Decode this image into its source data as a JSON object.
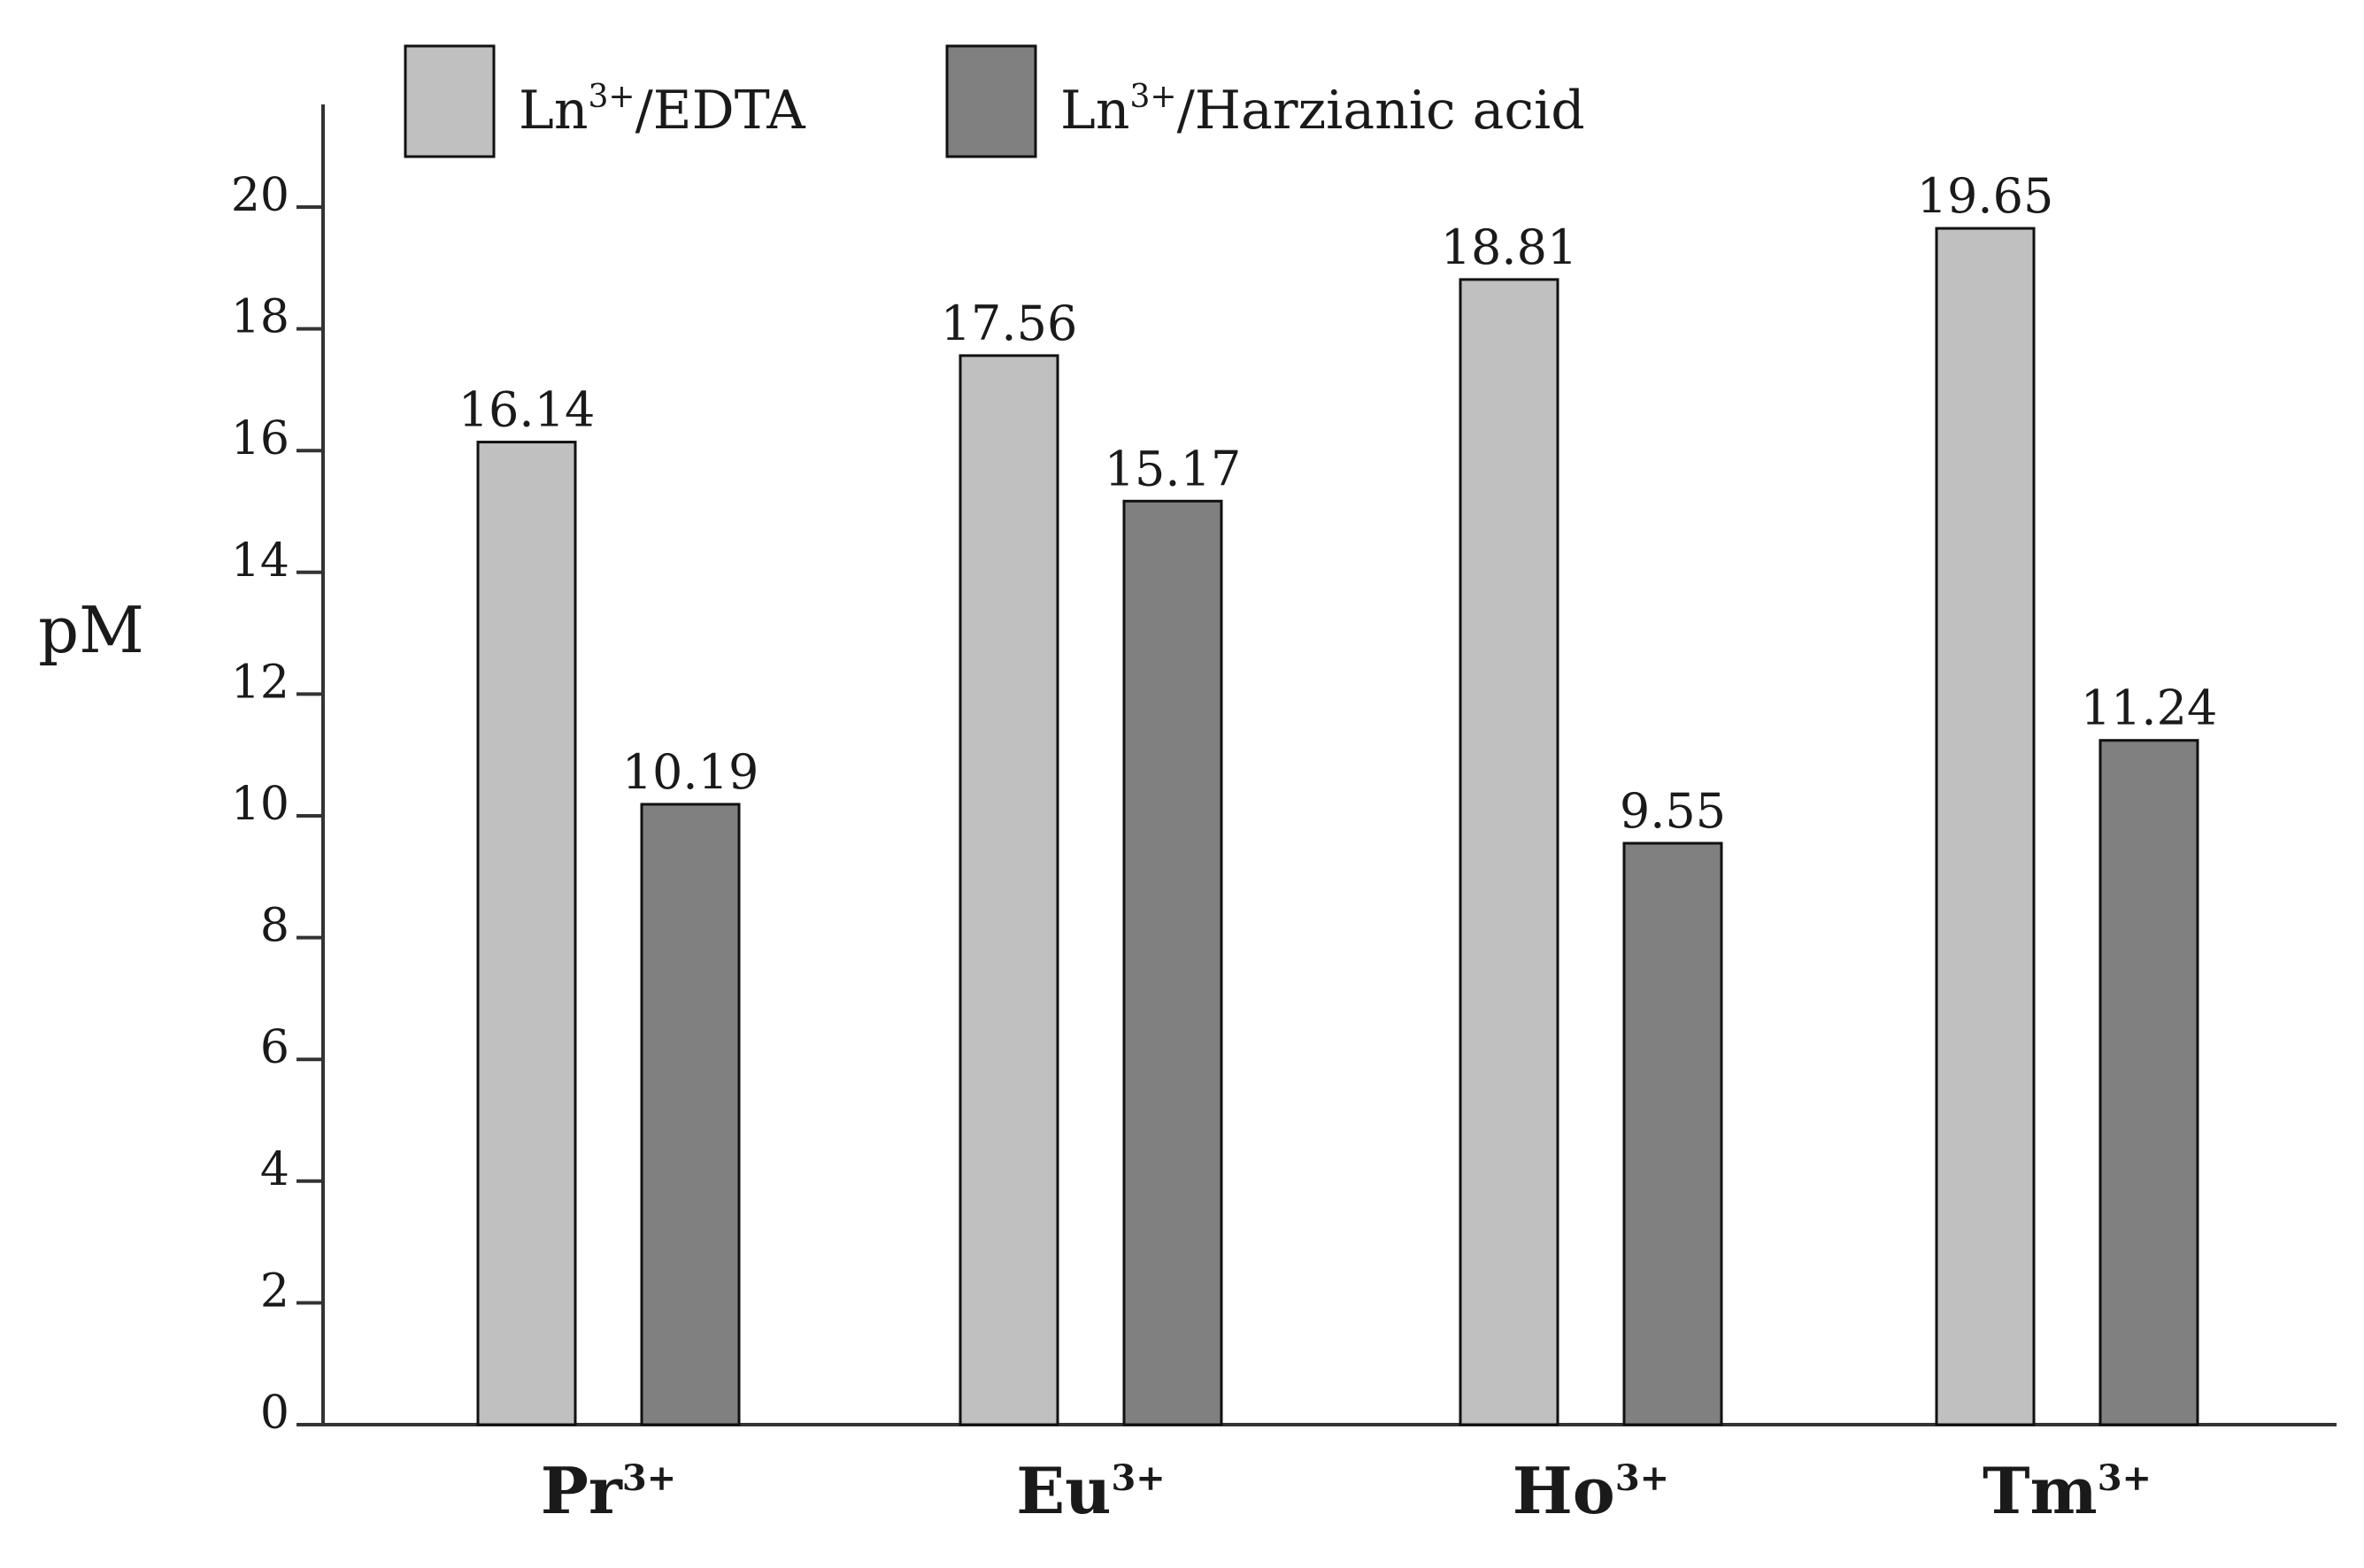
{
  "chart_data": {
    "type": "bar",
    "title": "",
    "xlabel": "",
    "ylabel": "pM",
    "ylim": [
      0,
      21
    ],
    "yticks": [
      0,
      2,
      4,
      6,
      8,
      10,
      12,
      14,
      16,
      18,
      20
    ],
    "categories": [
      {
        "base": "Pr",
        "sup": "3+"
      },
      {
        "base": "Eu",
        "sup": "3+"
      },
      {
        "base": "Ho",
        "sup": "3+"
      },
      {
        "base": "Tm",
        "sup": "3+"
      }
    ],
    "series": [
      {
        "name": "Ln3+/EDTA",
        "legend": {
          "pre": "Ln",
          "sup": "3+",
          "post": "/EDTA"
        },
        "color": "#c0c0c0",
        "values": [
          16.14,
          17.56,
          18.81,
          19.65
        ],
        "labels": [
          "16.14",
          "17.56",
          "18.81",
          "19.65"
        ]
      },
      {
        "name": "Ln3+/Harzianic acid",
        "legend": {
          "pre": "Ln",
          "sup": "3+",
          "post": "/Harzianic acid"
        },
        "color": "#808080",
        "values": [
          10.19,
          15.17,
          9.55,
          11.24
        ],
        "labels": [
          "10.19",
          "15.17",
          "9.55",
          "11.24"
        ]
      }
    ],
    "grid": false,
    "legend_position": "top"
  }
}
